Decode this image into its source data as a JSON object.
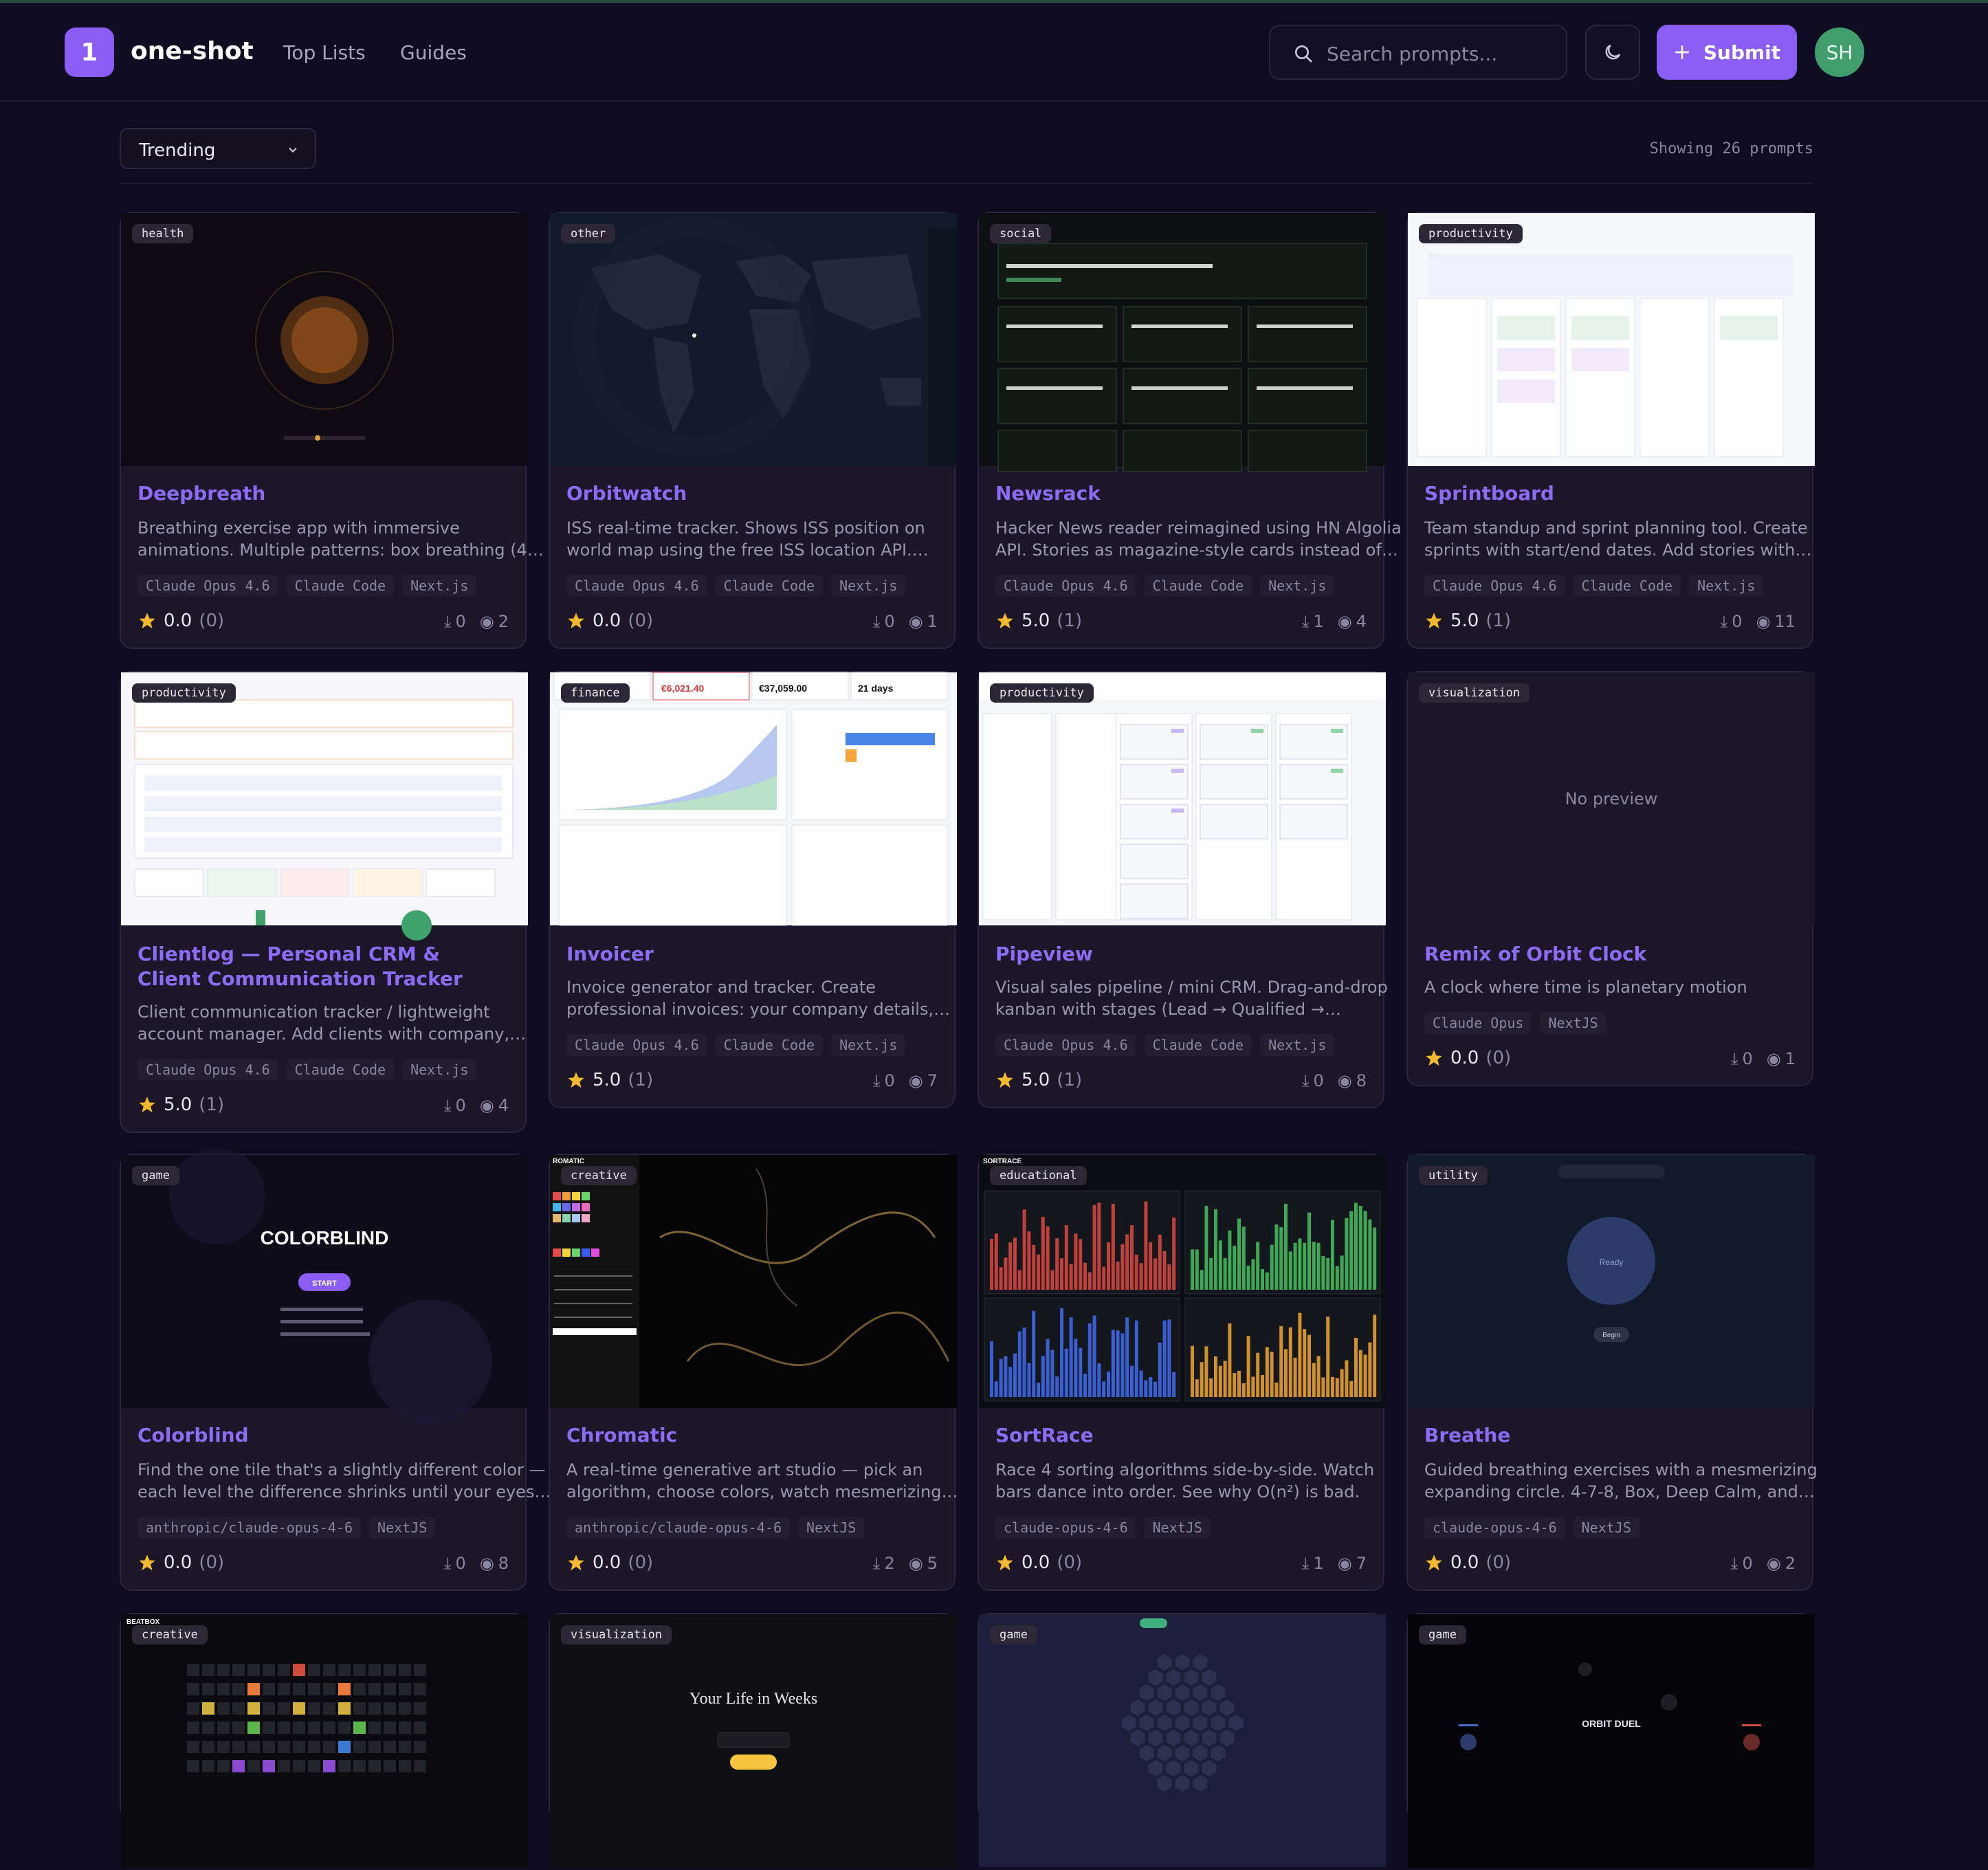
{
  "header": {
    "logo_mark": "1",
    "logo_text": "one-shot",
    "nav": [
      "Top Lists",
      "Guides"
    ],
    "search_placeholder": "Search prompts...",
    "submit_label": "Submit",
    "avatar_initials": "SH"
  },
  "toolbar": {
    "sort_value": "Trending",
    "count_text": "Showing 26 prompts"
  },
  "colors": {
    "accent": "#8b5cf6",
    "background": "#100c1f",
    "card": "#1b1729",
    "star": "#f5b82e"
  },
  "cards": [
    {
      "category": "health",
      "title": "Deepbreath",
      "desc": [
        "Breathing exercise app with immersive",
        "animations. Multiple patterns: box breathing (4…"
      ],
      "tags": [
        "Claude Opus 4.6",
        "Claude Code",
        "Next.js"
      ],
      "rating": "0.0",
      "rating_count": "(0)",
      "downloads": "0",
      "views": "2"
    },
    {
      "category": "other",
      "title": "Orbitwatch",
      "desc": [
        "ISS real-time tracker. Shows ISS position on",
        "world map using the free ISS location API.…"
      ],
      "tags": [
        "Claude Opus 4.6",
        "Claude Code",
        "Next.js"
      ],
      "rating": "0.0",
      "rating_count": "(0)",
      "downloads": "0",
      "views": "1"
    },
    {
      "category": "social",
      "title": "Newsrack",
      "desc": [
        "Hacker News reader reimagined using HN Algolia",
        "API. Stories as magazine-style cards instead of…"
      ],
      "tags": [
        "Claude Opus 4.6",
        "Claude Code",
        "Next.js"
      ],
      "rating": "5.0",
      "rating_count": "(1)",
      "downloads": "1",
      "views": "4"
    },
    {
      "category": "productivity",
      "title": "Sprintboard",
      "desc": [
        "Team standup and sprint planning tool. Create",
        "sprints with start/end dates. Add stories with…"
      ],
      "tags": [
        "Claude Opus 4.6",
        "Claude Code",
        "Next.js"
      ],
      "rating": "5.0",
      "rating_count": "(1)",
      "downloads": "0",
      "views": "11"
    },
    {
      "category": "productivity",
      "title": "Clientlog — Personal CRM & Client Communication Tracker",
      "desc": [
        "Client communication tracker / lightweight",
        "account manager. Add clients with company,…"
      ],
      "tags": [
        "Claude Opus 4.6",
        "Claude Code",
        "Next.js"
      ],
      "rating": "5.0",
      "rating_count": "(1)",
      "downloads": "0",
      "views": "4"
    },
    {
      "category": "finance",
      "title": "Invoicer",
      "desc": [
        "Invoice generator and tracker. Create",
        "professional invoices: your company details,…"
      ],
      "tags": [
        "Claude Opus 4.6",
        "Claude Code",
        "Next.js"
      ],
      "rating": "5.0",
      "rating_count": "(1)",
      "downloads": "0",
      "views": "7"
    },
    {
      "category": "productivity",
      "title": "Pipeview",
      "desc": [
        "Visual sales pipeline / mini CRM. Drag-and-drop",
        "kanban with stages (Lead → Qualified →…"
      ],
      "tags": [
        "Claude Opus 4.6",
        "Claude Code",
        "Next.js"
      ],
      "rating": "5.0",
      "rating_count": "(1)",
      "downloads": "0",
      "views": "8"
    },
    {
      "category": "visualization",
      "title": "Remix of Orbit Clock",
      "desc": [
        "A clock where time is planetary motion"
      ],
      "tags": [
        "Claude Opus",
        "NextJS"
      ],
      "rating": "0.0",
      "rating_count": "(0)",
      "downloads": "0",
      "views": "1",
      "no_preview": "No preview"
    },
    {
      "category": "game",
      "title": "Colorblind",
      "desc": [
        "Find the one tile that's a slightly different color —",
        "each level the difference shrinks until your eyes…"
      ],
      "tags": [
        "anthropic/claude-opus-4-6",
        "NextJS"
      ],
      "rating": "0.0",
      "rating_count": "(0)",
      "downloads": "0",
      "views": "8"
    },
    {
      "category": "creative",
      "title": "Chromatic",
      "desc": [
        "A real-time generative art studio — pick an",
        "algorithm, choose colors, watch mesmerizing…"
      ],
      "tags": [
        "anthropic/claude-opus-4-6",
        "NextJS"
      ],
      "rating": "0.0",
      "rating_count": "(0)",
      "downloads": "2",
      "views": "5"
    },
    {
      "category": "educational",
      "title": "SortRace",
      "desc": [
        "Race 4 sorting algorithms side-by-side. Watch",
        "bars dance into order. See why O(n²) is bad."
      ],
      "tags": [
        "claude-opus-4-6",
        "NextJS"
      ],
      "rating": "0.0",
      "rating_count": "(0)",
      "downloads": "1",
      "views": "7"
    },
    {
      "category": "utility",
      "title": "Breathe",
      "desc": [
        "Guided breathing exercises with a mesmerizing",
        "expanding circle. 4-7-8, Box, Deep Calm, and…"
      ],
      "tags": [
        "claude-opus-4-6",
        "NextJS"
      ],
      "rating": "0.0",
      "rating_count": "(0)",
      "downloads": "0",
      "views": "2"
    },
    {
      "category": "creative"
    },
    {
      "category": "visualization"
    },
    {
      "category": "game"
    },
    {
      "category": "game"
    }
  ],
  "thumb_text": {
    "colorblind_title": "COLORBLIND",
    "colorblind_start": "START",
    "life_title": "Your Life in Weeks",
    "orbit_title": "ORBIT DUEL",
    "breathe_ready": "Ready",
    "breathe_begin": "Begin",
    "invoice_amount_1": "€6,021.40",
    "invoice_amount_2": "€37,059.00",
    "invoice_days": "21 days",
    "sortrace_brand": "SORTRACE",
    "chromatic_brand": "ROMATIC",
    "beatbox_brand": "BEATBOX"
  }
}
